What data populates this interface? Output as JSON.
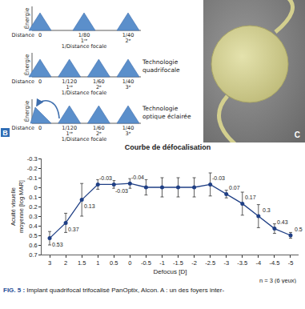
{
  "diagrams": {
    "y_label": "Énergie",
    "x_label": "1/Distance focale",
    "origin_label": "Distance",
    "panel_letter": "B",
    "rows": [
      {
        "ticks": [
          {
            "x": 0,
            "label": "0"
          },
          {
            "x": 0.0125,
            "label": "1/80",
            "order": "1ʳᵉ"
          },
          {
            "x": 0.025,
            "label": "1/40",
            "order": "2ᵉ"
          }
        ]
      },
      {
        "name": "Technologie quadrifocale",
        "ticks": [
          {
            "x": 0,
            "label": "0"
          },
          {
            "x": 0.008333,
            "label": "1/120",
            "order": "1ʳᵉ"
          },
          {
            "x": 0.016667,
            "label": "1/60",
            "order": "2ᵉ"
          },
          {
            "x": 0.025,
            "label": "1/40",
            "order": "3ᵉ"
          }
        ]
      },
      {
        "name": "Technologie optique éclairée",
        "arrow": true,
        "ticks": [
          {
            "x": 0,
            "label": "0"
          },
          {
            "x": 0.008333,
            "label": "1/120",
            "order": "1ʳᵉ"
          },
          {
            "x": 0.016667,
            "label": "1/60",
            "order": "2ᵉ"
          },
          {
            "x": 0.025,
            "label": "1/40",
            "order": "3ᵉ"
          }
        ]
      }
    ]
  },
  "photo": {
    "panel_letter": "C"
  },
  "chart_data": {
    "type": "line",
    "title": "Courbe de défocalisation",
    "x_label": "Defocus [D]",
    "y_label": "Acuité visuelle moyenne [log MAR]",
    "annotation": "n = 3 (6 yeux)",
    "categories": [
      "3",
      "2",
      "1.5",
      "1",
      "0.5",
      "0",
      "-0.5",
      "-1",
      "-1.5",
      "-2",
      "-2.5",
      "-3",
      "-3.5",
      "-4",
      "-4.5",
      "-5"
    ],
    "values": [
      0.53,
      0.37,
      0.13,
      -0.03,
      -0.03,
      -0.04,
      0,
      0,
      0,
      0,
      -0.03,
      0.07,
      0.17,
      0.3,
      0.43,
      0.5
    ],
    "value_labels": [
      "0.53",
      "0.37",
      "0.13",
      "-0.03",
      "-0.03",
      "-0.04",
      null,
      null,
      null,
      null,
      "-0.03",
      "0.07",
      "0.17",
      "0.3",
      "0.43",
      "0.5"
    ],
    "errors": [
      0.07,
      0.1,
      0.17,
      0.05,
      0.04,
      0.05,
      0.08,
      0.1,
      0.1,
      0.1,
      0.12,
      0.04,
      0.12,
      0.12,
      0.05,
      0.03
    ],
    "color": "#1f3f85",
    "marker": "circle",
    "line_style": "solid",
    "ylim": [
      0.7,
      -0.3
    ],
    "yticks": [
      -0.3,
      -0.2,
      -0.1,
      0,
      0.1,
      0.2,
      0.3,
      0.4,
      0.5,
      0.6,
      0.7
    ],
    "grid": false,
    "data_labels": true
  },
  "caption": {
    "label": "FIG. 5 :",
    "text": "Implant quadrifocal trifocalisé PanOptix, Alcon. A : un des foyers inter-"
  }
}
